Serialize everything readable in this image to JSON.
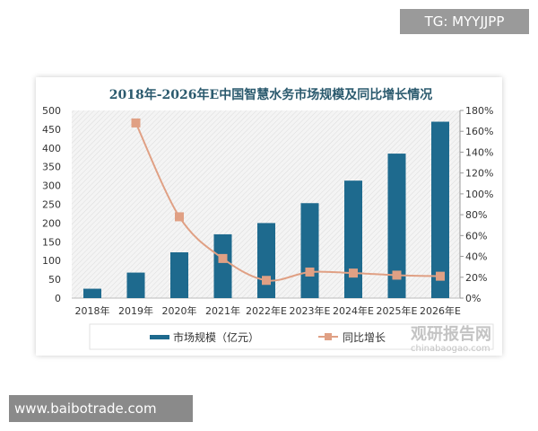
{
  "watermark_top": "TG: MYYJJPP",
  "watermark_bottom": "www.baibotrade.com",
  "logo_text": "观研报告网",
  "logo_url": "chinabaogao.com",
  "chart_data": {
    "type": "bar",
    "title": "2018年-2026年E中国智慧水务市场规模及同比增长情况",
    "categories": [
      "2018年",
      "2019年",
      "2020年",
      "2021年",
      "2022年E",
      "2023年E",
      "2024年E",
      "2025年E",
      "2026年E"
    ],
    "series": [
      {
        "name": "市场规模（亿元）",
        "type": "bar",
        "axis": "left",
        "color": "#1e6a8e",
        "values": [
          25,
          68,
          122,
          170,
          200,
          253,
          313,
          385,
          470
        ]
      },
      {
        "name": "同比增长",
        "type": "line",
        "axis": "right",
        "color": "#e0a084",
        "values": [
          null,
          168,
          78,
          38,
          17,
          25,
          24,
          22,
          21
        ]
      }
    ],
    "left_ylim": [
      0,
      500
    ],
    "left_ticks": [
      "0",
      "50",
      "100",
      "150",
      "200",
      "250",
      "300",
      "350",
      "400",
      "450",
      "500"
    ],
    "right_ylim": [
      0,
      180
    ],
    "right_ticks": [
      "0%",
      "20%",
      "40%",
      "60%",
      "80%",
      "100%",
      "120%",
      "140%",
      "160%",
      "180%"
    ],
    "legend": "bottom",
    "grid": false
  }
}
